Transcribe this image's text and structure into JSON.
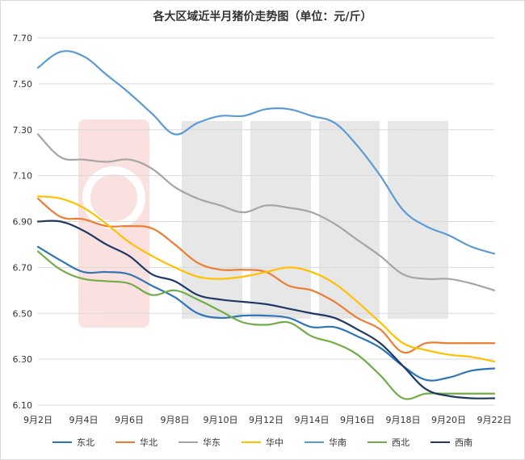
{
  "chart_data": {
    "type": "line",
    "title": "各大区域近半月猪价走势图（单位：元/斤）",
    "xlabel": "",
    "ylabel": "",
    "ylim": [
      6.1,
      7.7
    ],
    "y_ticks": [
      "6.10",
      "6.30",
      "6.50",
      "6.70",
      "6.90",
      "7.10",
      "7.30",
      "7.50",
      "7.70"
    ],
    "y_tick_values": [
      6.1,
      6.3,
      6.5,
      6.7,
      6.9,
      7.1,
      7.3,
      7.5,
      7.7
    ],
    "x_tick_labels": [
      "9月2日",
      "9月4日",
      "9月6日",
      "9月8日",
      "9月10日",
      "9月12日",
      "9月14日",
      "9月16日",
      "9月18日",
      "9月20日",
      "9月22日"
    ],
    "categories": [
      "9月2日",
      "9月3日",
      "9月4日",
      "9月5日",
      "9月6日",
      "9月7日",
      "9月8日",
      "9月9日",
      "9月10日",
      "9月11日",
      "9月12日",
      "9月13日",
      "9月14日",
      "9月15日",
      "9月16日",
      "9月17日",
      "9月18日",
      "9月19日",
      "9月20日",
      "9月21日",
      "9月22日"
    ],
    "grid": "horizontal",
    "legend_position": "bottom",
    "series": [
      {
        "name": "东北",
        "color": "#2e75b6",
        "values": [
          6.79,
          6.73,
          6.68,
          6.68,
          6.67,
          6.62,
          6.57,
          6.5,
          6.48,
          6.49,
          6.49,
          6.48,
          6.44,
          6.44,
          6.4,
          6.35,
          6.27,
          6.21,
          6.22,
          6.25,
          6.26
        ]
      },
      {
        "name": "华北",
        "color": "#ed7d31",
        "values": [
          7.0,
          6.92,
          6.91,
          6.88,
          6.88,
          6.87,
          6.8,
          6.72,
          6.69,
          6.69,
          6.68,
          6.62,
          6.6,
          6.55,
          6.48,
          6.43,
          6.33,
          6.37,
          6.37,
          6.37,
          6.37
        ]
      },
      {
        "name": "华东",
        "color": "#a5a5a5",
        "values": [
          7.28,
          7.18,
          7.17,
          7.16,
          7.17,
          7.13,
          7.05,
          7.0,
          6.97,
          6.94,
          6.97,
          6.96,
          6.94,
          6.89,
          6.82,
          6.75,
          6.67,
          6.65,
          6.65,
          6.63,
          6.6
        ]
      },
      {
        "name": "华中",
        "color": "#ffc000",
        "values": [
          7.01,
          7.0,
          6.96,
          6.89,
          6.81,
          6.75,
          6.7,
          6.66,
          6.65,
          6.66,
          6.68,
          6.7,
          6.68,
          6.63,
          6.55,
          6.46,
          6.37,
          6.34,
          6.32,
          6.31,
          6.29
        ]
      },
      {
        "name": "华南",
        "color": "#5b9bd5",
        "values": [
          7.57,
          7.64,
          7.62,
          7.54,
          7.46,
          7.37,
          7.28,
          7.33,
          7.36,
          7.36,
          7.39,
          7.39,
          7.36,
          7.33,
          7.23,
          7.1,
          6.95,
          6.88,
          6.84,
          6.79,
          6.76
        ]
      },
      {
        "name": "西北",
        "color": "#70ad47",
        "values": [
          6.77,
          6.69,
          6.65,
          6.64,
          6.63,
          6.58,
          6.6,
          6.56,
          6.51,
          6.46,
          6.45,
          6.46,
          6.4,
          6.37,
          6.32,
          6.23,
          6.13,
          6.15,
          6.15,
          6.15,
          6.15
        ]
      },
      {
        "name": "西南",
        "color": "#1f3864",
        "values": [
          6.9,
          6.9,
          6.86,
          6.8,
          6.75,
          6.67,
          6.64,
          6.58,
          6.56,
          6.55,
          6.54,
          6.52,
          6.5,
          6.48,
          6.43,
          6.37,
          6.27,
          6.17,
          6.14,
          6.13,
          6.13
        ]
      }
    ]
  }
}
